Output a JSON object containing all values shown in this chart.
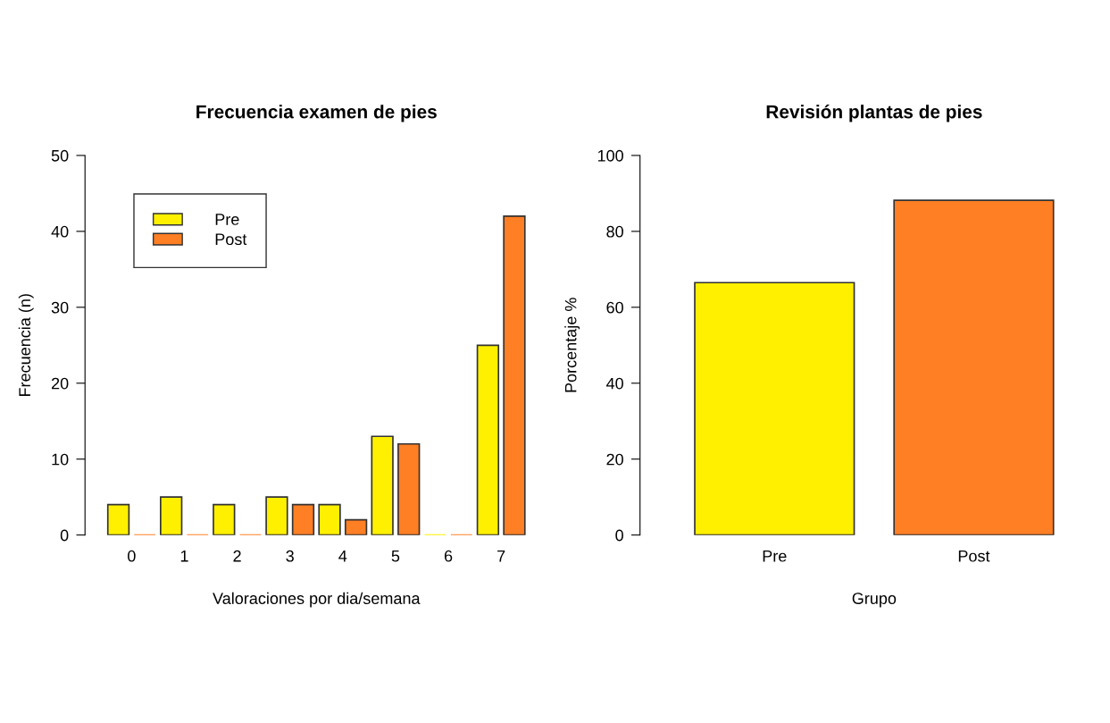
{
  "chart_data": [
    {
      "type": "bar",
      "title": "Frecuencia examen de pies",
      "xlabel": "Valoraciones por dia/semana",
      "ylabel": "Frecuencia (n)",
      "categories": [
        "0",
        "1",
        "2",
        "3",
        "4",
        "5",
        "6",
        "7"
      ],
      "series": [
        {
          "name": "Pre",
          "color": "#fff000",
          "values": [
            4,
            5,
            4,
            5,
            4,
            13,
            0,
            25
          ]
        },
        {
          "name": "Post",
          "color": "#ff7f24",
          "values": [
            0,
            0,
            0,
            4,
            2,
            12,
            0,
            42
          ]
        }
      ],
      "ylim": [
        0,
        50
      ],
      "yticks": [
        0,
        10,
        20,
        30,
        40,
        50
      ],
      "legend": "top left",
      "grid": false
    },
    {
      "type": "bar",
      "title": "Revisión plantas de pies",
      "xlabel": "Grupo",
      "ylabel": "Porcentaje %",
      "categories": [
        "Pre",
        "Post"
      ],
      "values": [
        66.5,
        88.2
      ],
      "colors": [
        "#fff000",
        "#ff7f24"
      ],
      "ylim": [
        0,
        100
      ],
      "yticks": [
        0,
        20,
        40,
        60,
        80,
        100
      ],
      "legend": false,
      "grid": false
    }
  ]
}
